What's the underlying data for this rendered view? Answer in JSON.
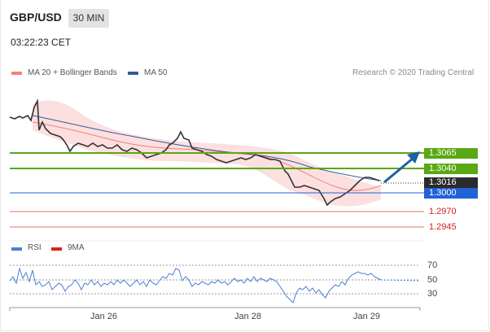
{
  "header": {
    "pair": "GBP/USD",
    "timeframe": "30 MIN",
    "time": "03:22:23 CET"
  },
  "legend": {
    "bollinger": {
      "label": "MA 20 + Bollinger Bands",
      "color": "#f08080"
    },
    "ma50": {
      "label": "MA 50",
      "color": "#345a9a"
    },
    "credit": "Research © 2020 Trading Central"
  },
  "levels": [
    {
      "price": "1.3065",
      "style": "green"
    },
    {
      "price": "1.3040",
      "style": "green"
    },
    {
      "price": "1.3016",
      "style": "dark"
    },
    {
      "price": "1.3000",
      "style": "blue"
    },
    {
      "price": "1.2970",
      "style": "red"
    },
    {
      "price": "1.2945",
      "style": "red"
    }
  ],
  "rsi": {
    "legend_rsi": "RSI",
    "legend_ma": "9MA",
    "rsi_color": "#4a7fd4",
    "ma_color": "#e02020",
    "ticks": [
      "70",
      "50",
      "30"
    ]
  },
  "x_axis": {
    "dates": [
      "Jan 26",
      "Jan 28",
      "Jan 29"
    ]
  },
  "colors": {
    "support_resistance": "#5aa813",
    "pivot": "#1f63d6",
    "target": "#e07070",
    "arrow": "#1f5fa8"
  }
}
